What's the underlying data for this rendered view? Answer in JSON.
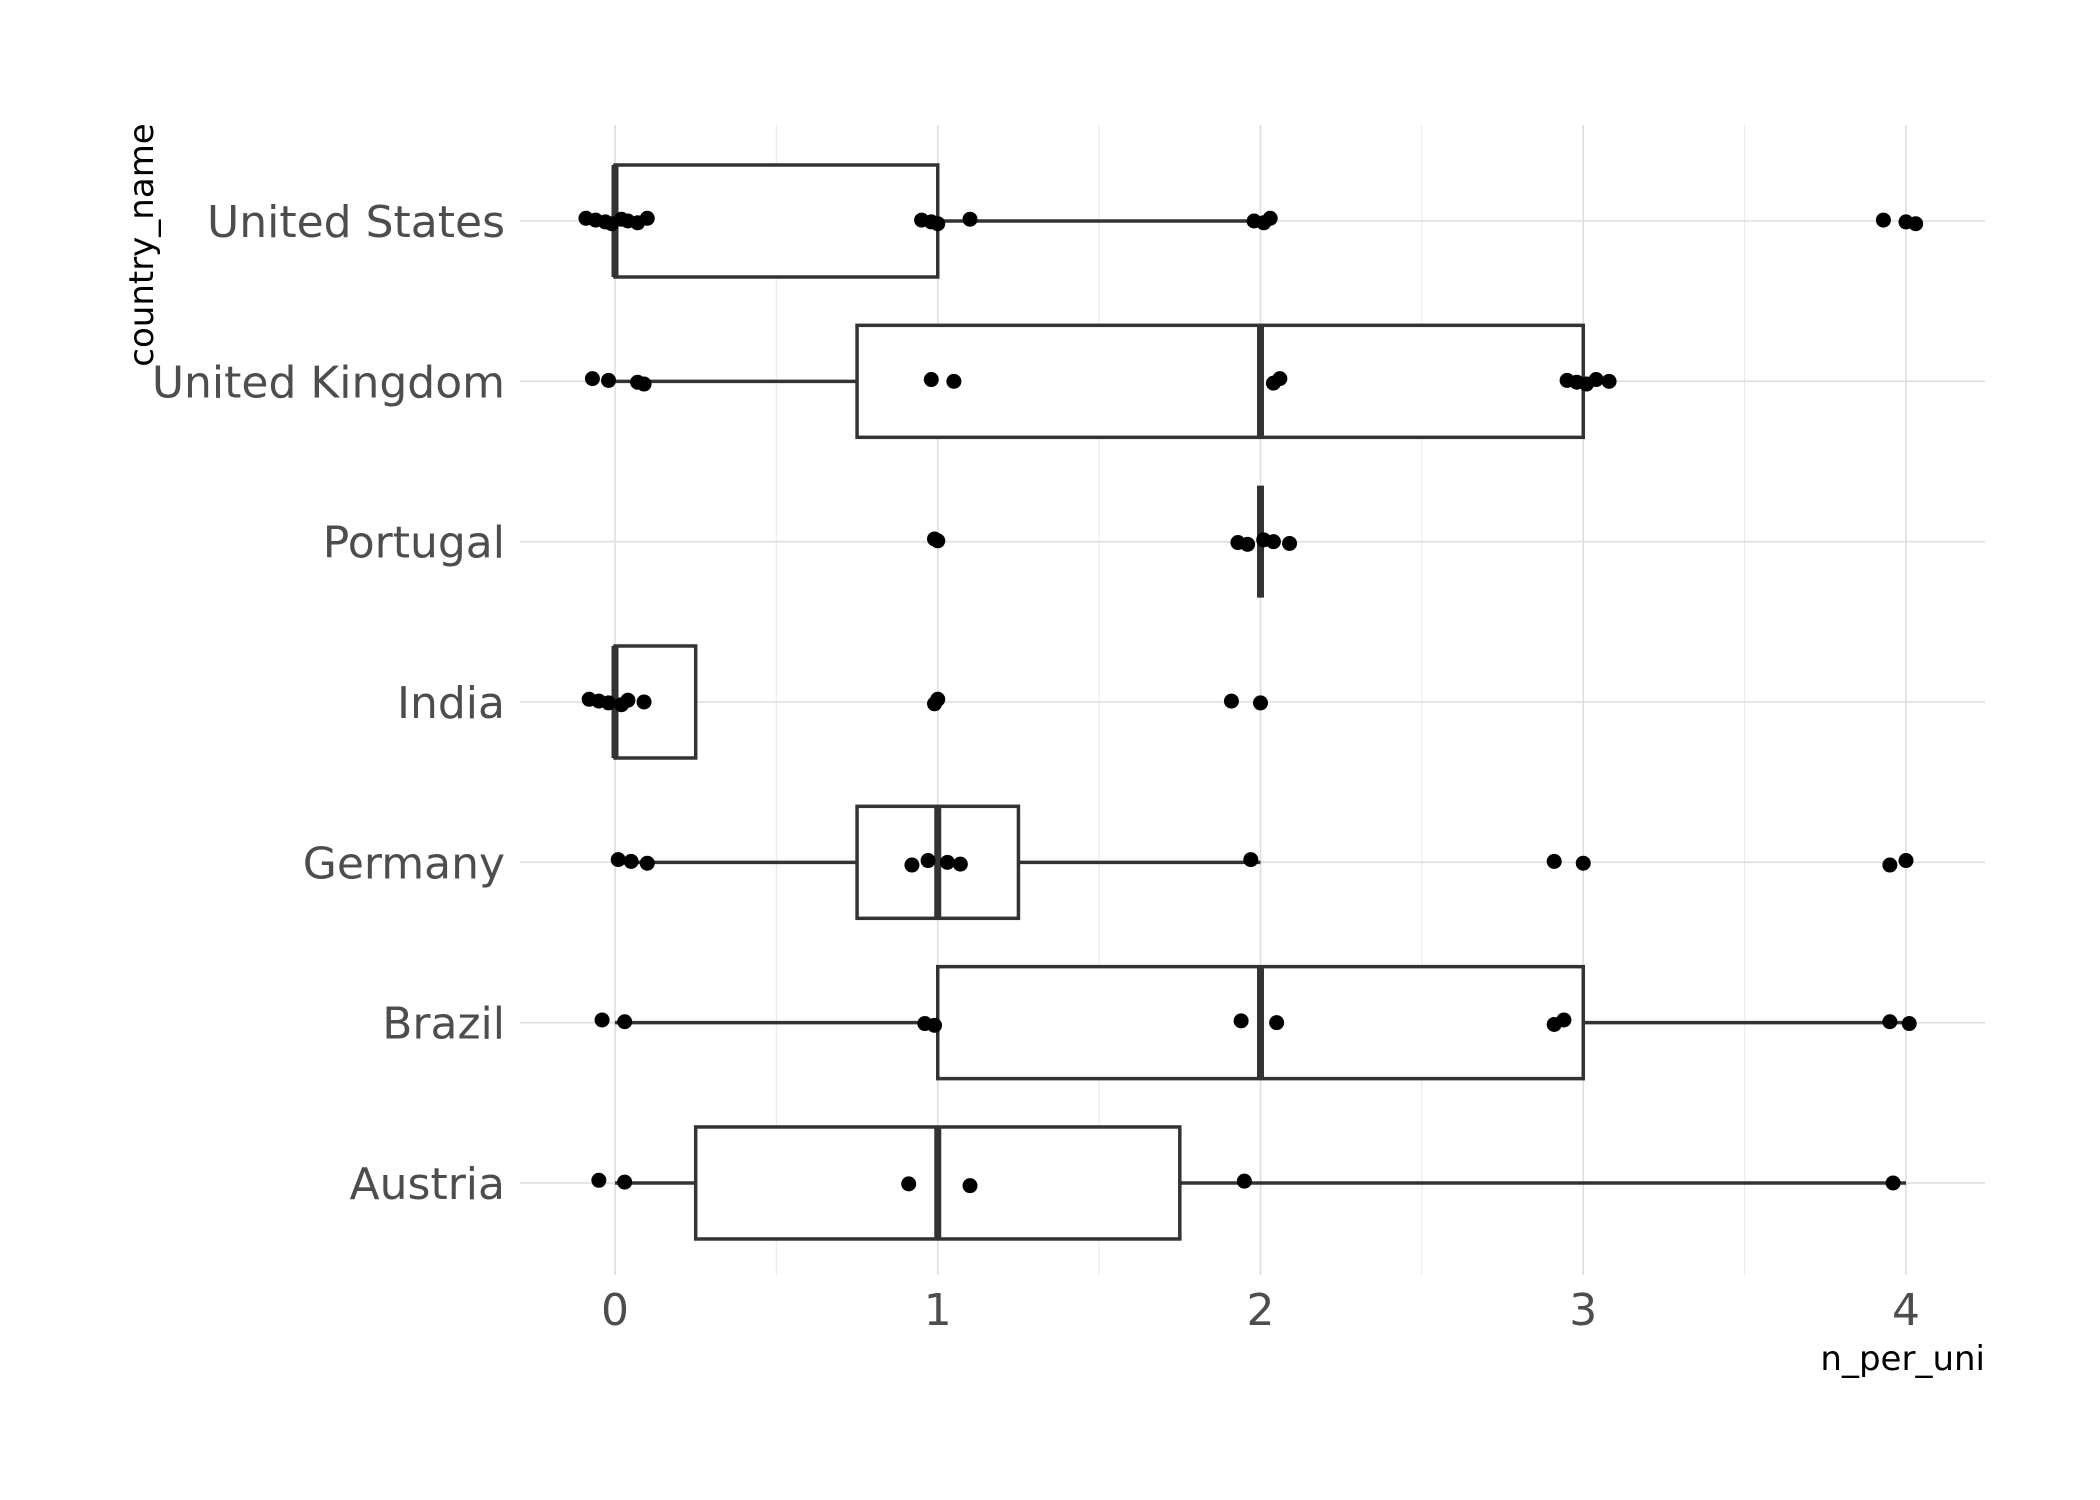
{
  "chart_data": {
    "type": "boxplot",
    "orientation": "horizontal",
    "xlabel": "n_per_uni",
    "ylabel": "country_name",
    "xlim": [
      -0.3,
      4.25
    ],
    "x_ticks": [
      0,
      1,
      2,
      3,
      4
    ],
    "grid": true,
    "categories": [
      "United States",
      "United Kingdom",
      "Portugal",
      "India",
      "Germany",
      "Brazil",
      "Austria"
    ],
    "boxes": [
      {
        "category": "United States",
        "whisker_low": 0,
        "q1": 0,
        "median": 0,
        "q3": 1,
        "whisker_high": 2.0
      },
      {
        "category": "United Kingdom",
        "whisker_low": 0,
        "q1": 0.75,
        "median": 2,
        "q3": 3,
        "whisker_high": 3.0
      },
      {
        "category": "Portugal",
        "whisker_low": 2,
        "q1": 2,
        "median": 2,
        "q3": 2,
        "whisker_high": 2
      },
      {
        "category": "India",
        "whisker_low": 0,
        "q1": 0,
        "median": 0,
        "q3": 0.25,
        "whisker_high": 0.25
      },
      {
        "category": "Germany",
        "whisker_low": 0,
        "q1": 0.75,
        "median": 1,
        "q3": 1.25,
        "whisker_high": 2
      },
      {
        "category": "Brazil",
        "whisker_low": 0,
        "q1": 1,
        "median": 2,
        "q3": 3,
        "whisker_high": 4
      },
      {
        "category": "Austria",
        "whisker_low": 0,
        "q1": 0.25,
        "median": 1,
        "q3": 1.75,
        "whisker_high": 4
      }
    ],
    "points": [
      {
        "category": "United States",
        "x": [
          -0.09,
          -0.06,
          -0.03,
          -0.01,
          0.02,
          0.04,
          0.07,
          0.1,
          0.95,
          0.98,
          1.0,
          1.1,
          1.98,
          2.01,
          2.03,
          3.93,
          4.0,
          4.03
        ]
      },
      {
        "category": "United Kingdom",
        "x": [
          -0.07,
          -0.02,
          0.07,
          0.09,
          0.98,
          1.05,
          2.04,
          2.06,
          2.95,
          2.98,
          3.01,
          3.04,
          3.08
        ]
      },
      {
        "category": "Portugal",
        "x": [
          0.99,
          1.0,
          1.93,
          1.96,
          2.01,
          2.04,
          2.09
        ]
      },
      {
        "category": "India",
        "x": [
          -0.08,
          -0.05,
          -0.02,
          0.02,
          0.04,
          0.09,
          0.99,
          1.0,
          1.91,
          2.0
        ]
      },
      {
        "category": "Germany",
        "x": [
          0.01,
          0.05,
          0.1,
          0.92,
          0.97,
          1.03,
          1.07,
          1.97,
          2.91,
          3.0,
          3.95,
          4.0
        ]
      },
      {
        "category": "Brazil",
        "x": [
          -0.04,
          0.03,
          0.96,
          0.99,
          1.94,
          2.05,
          2.91,
          2.94,
          3.95,
          4.01
        ]
      },
      {
        "category": "Austria",
        "x": [
          -0.05,
          0.03,
          0.91,
          1.1,
          1.95,
          3.96
        ]
      }
    ]
  }
}
